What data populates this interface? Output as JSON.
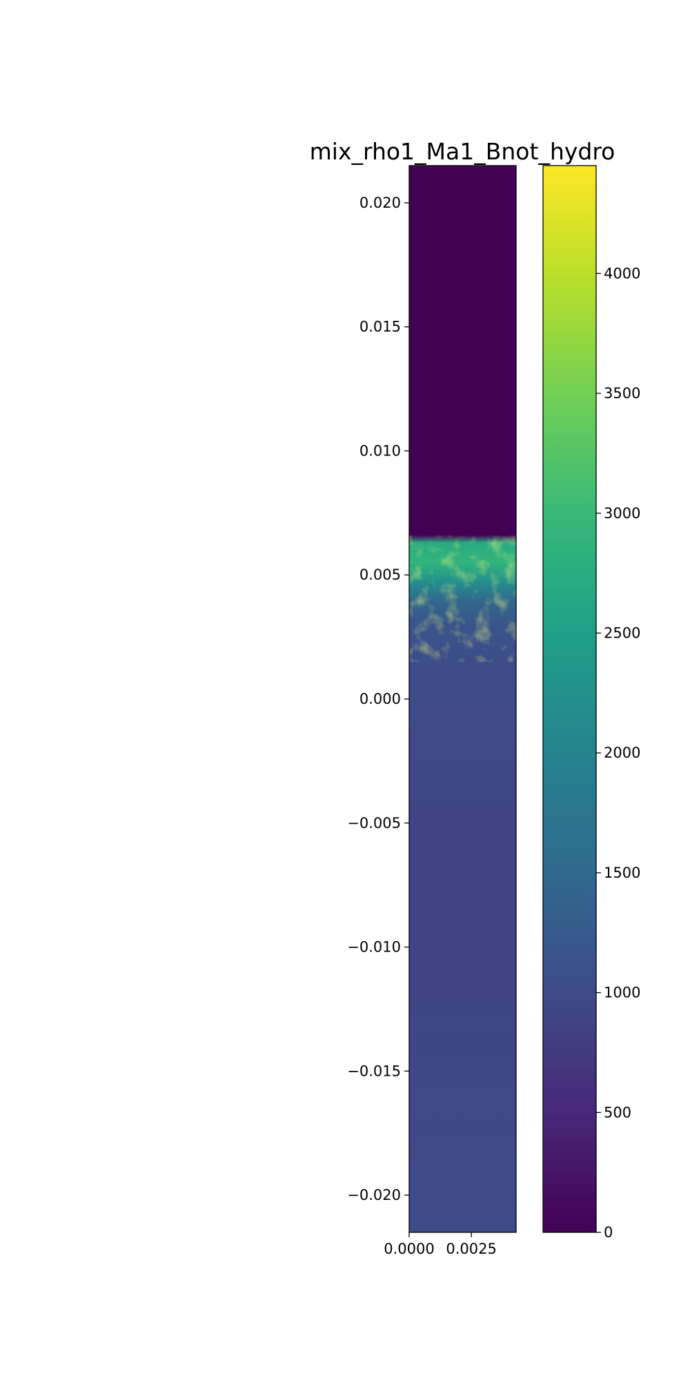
{
  "chart_data": {
    "type": "heatmap",
    "title": "mix_rho1_Ma1_Bnot_hydro",
    "xlabel": "",
    "ylabel": "",
    "xlim": [
      0.0,
      0.0043
    ],
    "ylim": [
      -0.0215,
      0.0215
    ],
    "x_ticks": [
      {
        "value": 0.0,
        "label": "0.0000"
      },
      {
        "value": 0.0025,
        "label": "0.0025"
      }
    ],
    "y_ticks": [
      {
        "value": 0.02,
        "label": "0.020"
      },
      {
        "value": 0.015,
        "label": "0.015"
      },
      {
        "value": 0.01,
        "label": "0.010"
      },
      {
        "value": 0.005,
        "label": "0.005"
      },
      {
        "value": 0.0,
        "label": "0.000"
      },
      {
        "value": -0.005,
        "label": "−0.005"
      },
      {
        "value": -0.01,
        "label": "−0.010"
      },
      {
        "value": -0.015,
        "label": "−0.015"
      },
      {
        "value": -0.02,
        "label": "−0.020"
      }
    ],
    "colormap": "viridis",
    "colorbar": {
      "range": [
        0,
        4450
      ],
      "ticks": [
        {
          "value": 0,
          "label": "0"
        },
        {
          "value": 500,
          "label": "500"
        },
        {
          "value": 1000,
          "label": "1000"
        },
        {
          "value": 1500,
          "label": "1500"
        },
        {
          "value": 2000,
          "label": "2000"
        },
        {
          "value": 2500,
          "label": "2500"
        },
        {
          "value": 3000,
          "label": "3000"
        },
        {
          "value": 3500,
          "label": "3500"
        },
        {
          "value": 4000,
          "label": "4000"
        }
      ]
    },
    "field_profile": [
      {
        "y": 0.0215,
        "value": 0
      },
      {
        "y": 0.007,
        "value": 0
      },
      {
        "y": 0.0066,
        "value": 0
      },
      {
        "y": 0.0063,
        "value": 2700
      },
      {
        "y": 0.0055,
        "value": 2900
      },
      {
        "y": 0.0048,
        "value": 2300
      },
      {
        "y": 0.004,
        "value": 1500
      },
      {
        "y": 0.003,
        "value": 1150
      },
      {
        "y": 0.002,
        "value": 1050
      },
      {
        "y": 0.0,
        "value": 1000
      },
      {
        "y": -0.005,
        "value": 900
      },
      {
        "y": -0.01,
        "value": 880
      },
      {
        "y": -0.015,
        "value": 950
      },
      {
        "y": -0.0215,
        "value": 1000
      }
    ],
    "grid": false,
    "legend": "none"
  },
  "colors": {
    "background": "#ffffff",
    "axes": "#000000",
    "viridis": [
      "#440154",
      "#482878",
      "#3e4a89",
      "#31688e",
      "#26828e",
      "#1f9e89",
      "#35b779",
      "#6ece58",
      "#b5de2b",
      "#fde725"
    ]
  }
}
